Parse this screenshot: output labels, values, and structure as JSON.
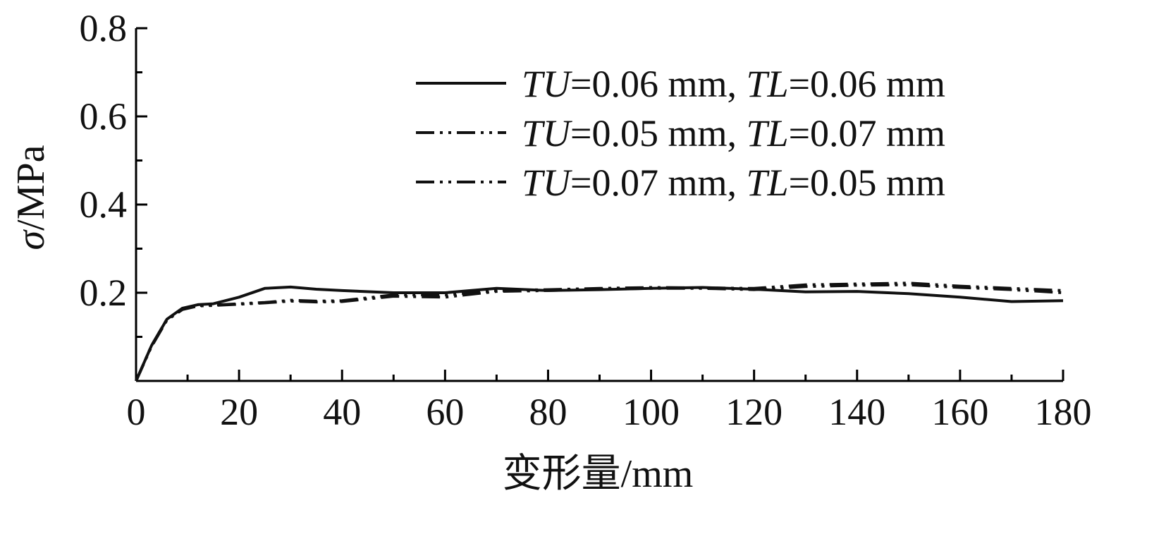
{
  "chart_data": {
    "type": "line",
    "title": "",
    "xlabel": "变形量/mm",
    "ylabel": "σ/MPa",
    "xlim": [
      0,
      180
    ],
    "ylim": [
      0,
      0.8
    ],
    "x_ticks": [
      "0",
      "20",
      "40",
      "60",
      "80",
      "100",
      "120",
      "140",
      "160",
      "180"
    ],
    "y_ticks": [
      "0.2",
      "0.4",
      "0.6",
      "0.8"
    ],
    "grid": false,
    "legend_position": "top-right",
    "series": [
      {
        "name": "TU=0.06 mm, TL=0.06 mm",
        "legend_parts": [
          {
            "text": "TU",
            "italic": true
          },
          {
            "text": "=0.06 mm, ",
            "italic": false
          },
          {
            "text": "TL",
            "italic": true
          },
          {
            "text": "=0.06 mm",
            "italic": false
          }
        ],
        "dash": "solid",
        "x": [
          0,
          3,
          6,
          9,
          12,
          15,
          20,
          25,
          30,
          35,
          40,
          50,
          60,
          70,
          80,
          90,
          100,
          110,
          120,
          130,
          140,
          150,
          160,
          170,
          180
        ],
        "y": [
          0,
          0.08,
          0.14,
          0.165,
          0.173,
          0.175,
          0.19,
          0.21,
          0.213,
          0.208,
          0.205,
          0.2,
          0.2,
          0.21,
          0.205,
          0.207,
          0.21,
          0.212,
          0.208,
          0.202,
          0.203,
          0.198,
          0.19,
          0.18,
          0.182
        ]
      },
      {
        "name": "TU=0.05 mm, TL=0.07 mm",
        "legend_parts": [
          {
            "text": "TU",
            "italic": true
          },
          {
            "text": "=0.05 mm, ",
            "italic": false
          },
          {
            "text": "TL",
            "italic": true
          },
          {
            "text": "=0.07 mm",
            "italic": false
          }
        ],
        "dash": "dash-dot-dot",
        "x": [
          0,
          3,
          6,
          9,
          12,
          15,
          20,
          25,
          30,
          35,
          40,
          50,
          60,
          70,
          80,
          90,
          100,
          110,
          120,
          130,
          140,
          150,
          160,
          170,
          180
        ],
        "y": [
          0,
          0.08,
          0.14,
          0.163,
          0.171,
          0.172,
          0.175,
          0.178,
          0.183,
          0.181,
          0.182,
          0.195,
          0.195,
          0.205,
          0.207,
          0.21,
          0.212,
          0.211,
          0.21,
          0.218,
          0.22,
          0.222,
          0.215,
          0.21,
          0.205
        ]
      },
      {
        "name": "TU=0.07 mm, TL=0.05 mm",
        "legend_parts": [
          {
            "text": "TU",
            "italic": true
          },
          {
            "text": "=0.07 mm, ",
            "italic": false
          },
          {
            "text": "TL",
            "italic": true
          },
          {
            "text": "=0.05 mm",
            "italic": false
          }
        ],
        "dash": "dash-dot-dot",
        "x": [
          0,
          3,
          6,
          9,
          12,
          15,
          20,
          25,
          30,
          35,
          40,
          50,
          60,
          70,
          80,
          90,
          100,
          110,
          120,
          130,
          140,
          150,
          160,
          170,
          180
        ],
        "y": [
          0,
          0.078,
          0.138,
          0.162,
          0.17,
          0.171,
          0.174,
          0.177,
          0.181,
          0.179,
          0.18,
          0.192,
          0.19,
          0.203,
          0.205,
          0.208,
          0.21,
          0.21,
          0.207,
          0.214,
          0.217,
          0.218,
          0.212,
          0.207,
          0.2
        ]
      }
    ]
  }
}
